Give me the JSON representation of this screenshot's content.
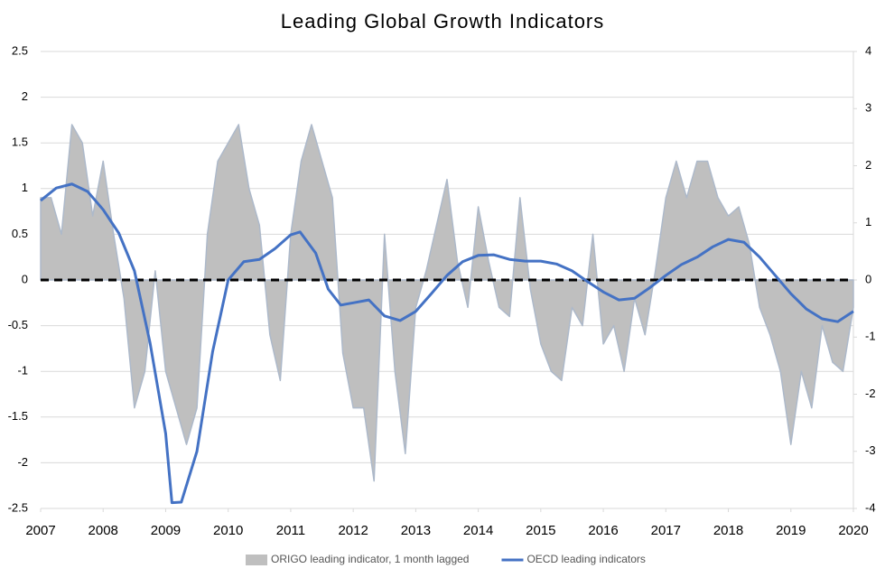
{
  "chart_data": {
    "type": "line",
    "title": "Leading Global Growth Indicators",
    "xlim": [
      2007,
      2020
    ],
    "xticks": [
      2007,
      2008,
      2009,
      2010,
      2011,
      2012,
      2013,
      2014,
      2015,
      2016,
      2017,
      2018,
      2019,
      2020
    ],
    "ylim": [
      -2.5,
      2.5
    ],
    "yticks": [
      -2.5,
      -2,
      -1.5,
      -1,
      -0.5,
      0,
      0.5,
      1,
      1.5,
      2,
      2.5
    ],
    "y2lim": [
      -4,
      4
    ],
    "y2ticks": [
      -4,
      -3,
      -2,
      -1,
      0,
      1,
      2,
      3,
      4
    ],
    "grid": true,
    "zero_line": true,
    "legend": "bottom",
    "series": [
      {
        "name": "ORIGO leading indicator, 1 month lagged",
        "type": "area",
        "color": "#bfbfbf",
        "edge_color": "#adb9ca",
        "x": [
          2007,
          2007.167,
          2007.333,
          2007.5,
          2007.667,
          2007.833,
          2008,
          2008.167,
          2008.333,
          2008.5,
          2008.667,
          2008.833,
          2009,
          2009.167,
          2009.333,
          2009.5,
          2009.667,
          2009.833,
          2010,
          2010.167,
          2010.333,
          2010.5,
          2010.667,
          2010.833,
          2011,
          2011.167,
          2011.333,
          2011.5,
          2011.667,
          2011.833,
          2012,
          2012.167,
          2012.333,
          2012.5,
          2012.667,
          2012.833,
          2013,
          2013.167,
          2013.333,
          2013.5,
          2013.667,
          2013.833,
          2014,
          2014.167,
          2014.333,
          2014.5,
          2014.667,
          2014.833,
          2015,
          2015.167,
          2015.333,
          2015.5,
          2015.667,
          2015.833,
          2016,
          2016.167,
          2016.333,
          2016.5,
          2016.667,
          2016.833,
          2017,
          2017.167,
          2017.333,
          2017.5,
          2017.667,
          2017.833,
          2018,
          2018.167,
          2018.333,
          2018.5,
          2018.667,
          2018.833,
          2019,
          2019.167,
          2019.333,
          2019.5,
          2019.667,
          2019.833,
          2020
        ],
        "values": [
          0.9,
          0.9,
          0.5,
          1.7,
          1.5,
          0.7,
          1.3,
          0.5,
          -0.2,
          -1.4,
          -1.0,
          0.1,
          -1.0,
          -1.4,
          -1.8,
          -1.4,
          0.5,
          1.3,
          1.5,
          1.7,
          1.0,
          0.6,
          -0.6,
          -1.1,
          0.5,
          1.3,
          1.7,
          1.3,
          0.9,
          -0.8,
          -1.4,
          -1.4,
          -2.2,
          0.5,
          -1.0,
          -1.9,
          -0.3,
          0.1,
          0.6,
          1.1,
          0.2,
          -0.3,
          0.8,
          0.2,
          -0.3,
          -0.4,
          0.9,
          -0.1,
          -0.7,
          -1.0,
          -1.1,
          -0.3,
          -0.5,
          0.5,
          -0.7,
          -0.5,
          -1.0,
          -0.2,
          -0.6,
          0.1,
          0.9,
          1.3,
          0.9,
          1.3,
          1.3,
          0.9,
          0.7,
          0.8,
          0.4,
          -0.3,
          -0.6,
          -1.0,
          -1.8,
          -1.0,
          -1.4,
          -0.5,
          -0.9,
          -1.0,
          -0.3
        ]
      },
      {
        "name": "OECD leading indicators",
        "type": "line",
        "axis": "y2",
        "color": "#4472c4",
        "x": [
          2007,
          2007.25,
          2007.5,
          2007.75,
          2008,
          2008.25,
          2008.5,
          2008.75,
          2009,
          2009.1,
          2009.25,
          2009.5,
          2009.75,
          2010,
          2010.25,
          2010.5,
          2010.75,
          2011,
          2011.15,
          2011.4,
          2011.6,
          2011.8,
          2012,
          2012.25,
          2012.5,
          2012.75,
          2013,
          2013.25,
          2013.5,
          2013.75,
          2014,
          2014.25,
          2014.5,
          2014.75,
          2015,
          2015.25,
          2015.5,
          2015.75,
          2016,
          2016.25,
          2016.5,
          2016.75,
          2017,
          2017.25,
          2017.5,
          2017.75,
          2018,
          2018.25,
          2018.5,
          2018.75,
          2019,
          2019.25,
          2019.5,
          2019.75,
          2020
        ],
        "values": [
          1.39,
          1.61,
          1.68,
          1.55,
          1.23,
          0.82,
          0.16,
          -1.1,
          -2.69,
          -3.9,
          -3.89,
          -3.0,
          -1.26,
          0,
          0.32,
          0.36,
          0.55,
          0.79,
          0.84,
          0.47,
          -0.16,
          -0.44,
          -0.4,
          -0.35,
          -0.63,
          -0.71,
          -0.55,
          -0.24,
          0.08,
          0.32,
          0.43,
          0.44,
          0.36,
          0.33,
          0.33,
          0.28,
          0.16,
          -0.03,
          -0.21,
          -0.35,
          -0.32,
          -0.13,
          0.08,
          0.27,
          0.4,
          0.58,
          0.71,
          0.66,
          0.4,
          0.08,
          -0.24,
          -0.51,
          -0.68,
          -0.73,
          -0.55
        ]
      }
    ]
  }
}
